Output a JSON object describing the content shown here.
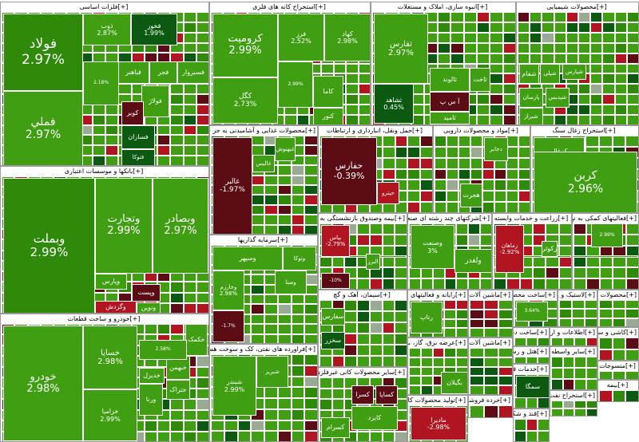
{
  "chart_data": {
    "type": "treemap",
    "colors": {
      "positive": "#3f9e12",
      "strong_positive": "#2f8a0a",
      "dark_positive": "#0c5a12",
      "negative": "#b01521",
      "dark_negative": "#5c0c14",
      "neutral": "#9aaa94"
    },
    "sectors": [
      {
        "id": "s1",
        "name": "فلزات اساسی",
        "items": [
          {
            "name": "فولاد",
            "pct": "2.97%"
          },
          {
            "name": "فملي",
            "pct": "2.97%"
          },
          {
            "name": "ذوب",
            "pct": "2.87%"
          },
          {
            "name": "فخوز",
            "pct": "1.99%"
          },
          {
            "name": "فباهنر",
            "pct": ""
          },
          {
            "name": "فجر",
            "pct": ""
          },
          {
            "name": "فسبزوار",
            "pct": ""
          },
          {
            "name": "فولاژ",
            "pct": ""
          },
          {
            "name": "کویر",
            "pct": ""
          },
          {
            "name": "فسازان",
            "pct": ""
          },
          {
            "name": "فتوکا",
            "pct": ""
          },
          {
            "name": "",
            "pct": "2.18%"
          }
        ]
      },
      {
        "id": "s2",
        "name": "استخراج کانه های فلزی",
        "items": [
          {
            "name": "کرومیت",
            "pct": "2.99%"
          },
          {
            "name": "فرز",
            "pct": "2.52%"
          },
          {
            "name": "کهاد",
            "pct": "2.98%"
          },
          {
            "name": "کگل",
            "pct": "2.73%"
          },
          {
            "name": "کاما",
            "pct": ""
          },
          {
            "name": "کنور",
            "pct": ""
          },
          {
            "name": "",
            "pct": "2.99%"
          }
        ]
      },
      {
        "id": "s3",
        "name": "انبوه سازی، املاک و مستغلات",
        "items": [
          {
            "name": "ثفارس",
            "pct": "2.97%"
          },
          {
            "name": "ثشاهد",
            "pct": "0.45%"
          },
          {
            "name": "ثالوند",
            "pct": ""
          },
          {
            "name": "ثاخت",
            "pct": ""
          },
          {
            "name": "آ س پ",
            "pct": ""
          },
          {
            "name": "ثامید",
            "pct": ""
          }
        ]
      },
      {
        "id": "s4",
        "name": "محصولات شیمیایی",
        "items": [
          {
            "name": "شفام",
            "pct": ""
          },
          {
            "name": "شپلی",
            "pct": ""
          },
          {
            "name": "شپارس",
            "pct": ""
          },
          {
            "name": "شیراز",
            "pct": ""
          },
          {
            "name": "پارسان",
            "pct": ""
          },
          {
            "name": "شپدیس",
            "pct": ""
          }
        ]
      },
      {
        "id": "s5",
        "name": "بانکها و موسسات اعتباری",
        "items": [
          {
            "name": "وبملت",
            "pct": "2.99%"
          },
          {
            "name": "وتجارت",
            "pct": "2.99%"
          },
          {
            "name": "وبصادر",
            "pct": "2.97%"
          },
          {
            "name": "وپارس",
            "pct": ""
          },
          {
            "name": "وگردش",
            "pct": ""
          },
          {
            "name": "ونوین",
            "pct": ""
          },
          {
            "name": "وپست",
            "pct": ""
          }
        ]
      },
      {
        "id": "s6",
        "name": "محصولات غذایی و آشامیدنی به جز قند و شکر",
        "items": [
          {
            "name": "غالبر",
            "pct": "-1.97%"
          },
          {
            "name": "غبهنوش",
            "pct": ""
          },
          {
            "name": "غالیس",
            "pct": ""
          }
        ]
      },
      {
        "id": "s7",
        "name": "حمل ونقل، انبارداری و ارتباطات",
        "items": [
          {
            "name": "حفارس",
            "pct": "-0.39%"
          },
          {
            "name": "حپترو",
            "pct": ""
          }
        ]
      },
      {
        "id": "s8",
        "name": "مواد و محصولات دارویی",
        "items": [
          {
            "name": "دجابر",
            "pct": ""
          },
          {
            "name": "هجرت",
            "pct": ""
          }
        ]
      },
      {
        "id": "s9",
        "name": "استخراج زغال سنگ",
        "items": [
          {
            "name": "کزغال",
            "pct": ""
          },
          {
            "name": "کربن",
            "pct": "2.96%"
          }
        ]
      },
      {
        "id": "s10",
        "name": "خودرو و ساخت قطعات",
        "items": [
          {
            "name": "خودرو",
            "pct": "2.98%"
          },
          {
            "name": "خساپا",
            "pct": "2.98%"
          },
          {
            "name": "خزامیا",
            "pct": "2.99%"
          },
          {
            "name": "خدیزل",
            "pct": ""
          },
          {
            "name": "خبهمن",
            "pct": ""
          },
          {
            "name": "ختراک",
            "pct": ""
          },
          {
            "name": "ورنا",
            "pct": ""
          },
          {
            "name": "خکمک",
            "pct": ""
          },
          {
            "name": "",
            "pct": "2.58%"
          }
        ]
      },
      {
        "id": "s11",
        "name": "سرمایه گذاریها",
        "items": [
          {
            "name": "وسپهر",
            "pct": ""
          },
          {
            "name": "وتوکا",
            "pct": ""
          },
          {
            "name": "وصنا",
            "pct": ""
          },
          {
            "name": "وخارزم",
            "pct": "2.98%"
          },
          {
            "name": "",
            "pct": "-1.7%"
          }
        ]
      },
      {
        "id": "s12",
        "name": "فراورده های نفتی، کک و سوخت هسته ای",
        "items": [
          {
            "name": "شبندر",
            "pct": "2.99%"
          },
          {
            "name": "شبریز",
            "pct": ""
          }
        ]
      },
      {
        "id": "s13",
        "name": "بیمه وصندوق بازنشستگی به جز تامین اجتماعی",
        "items": [
          {
            "name": "بپاس",
            "pct": "-2.79%"
          },
          {
            "name": "البرز",
            "pct": ""
          },
          {
            "name": "",
            "pct": "-10%"
          }
        ]
      },
      {
        "id": "s14",
        "name": "شرکتهای چند رشته ای صنعتی",
        "items": [
          {
            "name": "وصنعت",
            "pct": "3%"
          },
          {
            "name": "ولغدر",
            "pct": ""
          }
        ]
      },
      {
        "id": "s15",
        "name": "زراعت و خدمات وابسته",
        "items": [
          {
            "name": "زماهان",
            "pct": "-2.92%"
          },
          {
            "name": "زکوثر",
            "pct": ""
          }
        ]
      },
      {
        "id": "s16",
        "name": "فعالیتهای کمکی به نهادهای مالی واسط",
        "items": [
          {
            "name": "",
            "pct": "2.99%"
          }
        ]
      },
      {
        "id": "s17",
        "name": "سیمان، آهک و گچ",
        "items": [
          {
            "name": "سفارس",
            "pct": ""
          },
          {
            "name": "سخزر",
            "pct": ""
          }
        ]
      },
      {
        "id": "s18",
        "name": "رایانه و فعالیتهای وابسته به آن",
        "items": [
          {
            "name": "رتاپ",
            "pct": ""
          }
        ]
      },
      {
        "id": "s19",
        "name": "ماشین آلات و تجهیزات",
        "items": []
      },
      {
        "id": "s20",
        "name": "ساخت محصولات فلزی",
        "items": [
          {
            "name": "",
            "pct": "3.64%"
          }
        ]
      },
      {
        "id": "s21",
        "name": "لاستیک و پلاستیک",
        "items": []
      },
      {
        "id": "s22",
        "name": "محصولات کاغذی",
        "items": []
      },
      {
        "id": "s23",
        "name": "ساخت دستگاهها و وسایل ارتباطی",
        "items": []
      },
      {
        "id": "s24",
        "name": "اطلاعات و ارتباطات",
        "items": []
      },
      {
        "id": "s25",
        "name": "کاشی و سرامیک",
        "items": []
      },
      {
        "id": "s26",
        "name": "هتل و رستوران",
        "items": []
      },
      {
        "id": "s27",
        "name": "عرضه برق، گاز، بخار و آب گرم",
        "items": [
          {
            "name": "بگیلان",
            "pct": ""
          }
        ]
      },
      {
        "id": "s28",
        "name": "ماشین آلات و دستگاههای برقی",
        "items": []
      },
      {
        "id": "s29",
        "name": "خدمات فنی و مهندسی",
        "items": [
          {
            "name": "سمگا",
            "pct": ""
          }
        ]
      },
      {
        "id": "s30",
        "name": "سایر واسطه گریهای مالی",
        "items": []
      },
      {
        "id": "s31",
        "name": "سایر محصولات کانی غیرفلزی",
        "items": [
          {
            "name": "کسرا",
            "pct": ""
          },
          {
            "name": "کساپا",
            "pct": ""
          },
          {
            "name": "کایزد",
            "pct": ""
          },
          {
            "name": "کسرام",
            "pct": ""
          }
        ]
      },
      {
        "id": "s32",
        "name": "خرده فروشی",
        "items": []
      },
      {
        "id": "s33",
        "name": "منسوجات",
        "items": []
      },
      {
        "id": "s34",
        "name": "تولید محصولات کامپیوتری",
        "items": [
          {
            "name": "مادیرا",
            "pct": "-2.98%"
          }
        ]
      },
      {
        "id": "s35",
        "name": "قند و شکر",
        "items": []
      },
      {
        "id": "s36",
        "name": "استخراج نفت گاز",
        "items": []
      },
      {
        "id": "s37",
        "name": "بیمه",
        "items": []
      }
    ]
  },
  "ui": {
    "expand_label": "[+]"
  }
}
